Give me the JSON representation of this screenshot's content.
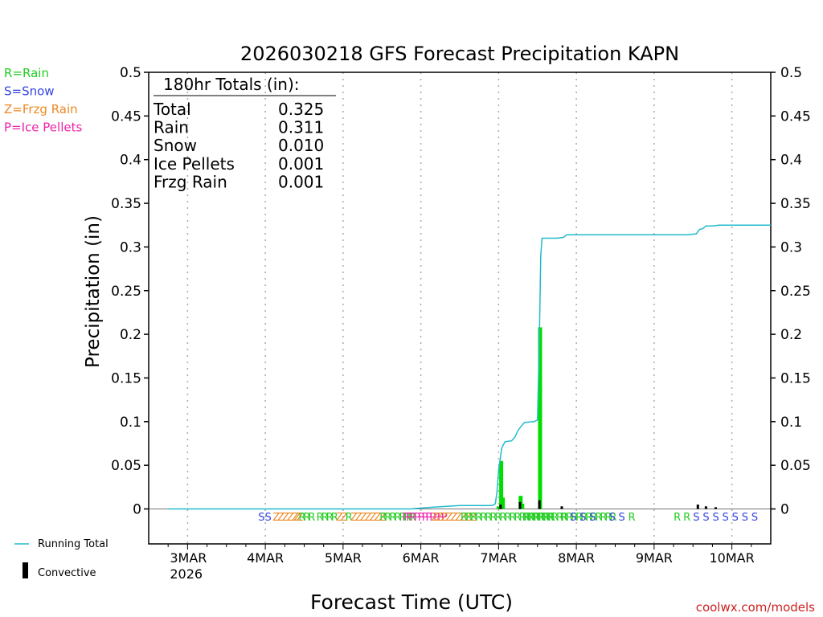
{
  "chart_data": {
    "type": "bar",
    "title": "2026030218 GFS Forecast Precipitation KAPN",
    "xlabel": "Forecast Time (UTC)",
    "ylabel": "Precipitation (in)",
    "ylim": [
      -0.04,
      0.5
    ],
    "xlim_hours": [
      -6,
      186
    ],
    "yticks": [
      0,
      0.05,
      0.1,
      0.15,
      0.2,
      0.25,
      0.3,
      0.35,
      0.4,
      0.45,
      0.5
    ],
    "ytick_labels": [
      "0",
      "0.05",
      "0.1",
      "0.15",
      "0.2",
      "0.25",
      "0.3",
      "0.35",
      "0.4",
      "0.45",
      "0.5"
    ],
    "xticks": [
      {
        "hour": 6,
        "label": "3MAR",
        "sub": "2026"
      },
      {
        "hour": 30,
        "label": "4MAR",
        "sub": ""
      },
      {
        "hour": 54,
        "label": "5MAR",
        "sub": ""
      },
      {
        "hour": 78,
        "label": "6MAR",
        "sub": ""
      },
      {
        "hour": 102,
        "label": "7MAR",
        "sub": ""
      },
      {
        "hour": 126,
        "label": "8MAR",
        "sub": ""
      },
      {
        "hour": 150,
        "label": "9MAR",
        "sub": ""
      },
      {
        "hour": 174,
        "label": "10MAR",
        "sub": ""
      }
    ],
    "type_legend": [
      {
        "text": "R=Rain",
        "color": "#22cc22"
      },
      {
        "text": "S=Snow",
        "color": "#3344dd"
      },
      {
        "text": "Z=Frzg Rain",
        "color": "#ee8822"
      },
      {
        "text": "P=Ice Pellets",
        "color": "#ee22aa"
      }
    ],
    "totals_box": {
      "heading": "180hr Totals (in):",
      "rows": [
        {
          "label": "Total",
          "value": "0.325"
        },
        {
          "label": "Rain",
          "value": "0.311"
        },
        {
          "label": "Snow",
          "value": "0.010"
        },
        {
          "label": "Ice Pellets",
          "value": "0.001"
        },
        {
          "label": "Frzg Rain",
          "value": "0.001"
        }
      ]
    },
    "series": [
      {
        "name": "Running Total",
        "color": "#22bbcc",
        "points": [
          [
            0,
            0
          ],
          [
            75,
            0
          ],
          [
            78,
            0.001
          ],
          [
            82,
            0.002
          ],
          [
            86,
            0.003
          ],
          [
            90,
            0.004
          ],
          [
            100,
            0.004
          ],
          [
            101,
            0.006
          ],
          [
            101.5,
            0.02
          ],
          [
            102,
            0.045
          ],
          [
            103,
            0.07
          ],
          [
            104,
            0.077
          ],
          [
            106,
            0.078
          ],
          [
            107,
            0.082
          ],
          [
            108,
            0.09
          ],
          [
            109,
            0.095
          ],
          [
            110,
            0.099
          ],
          [
            113,
            0.1
          ],
          [
            114,
            0.102
          ],
          [
            114.6,
            0.2
          ],
          [
            115,
            0.29
          ],
          [
            115.4,
            0.31
          ],
          [
            120,
            0.31
          ],
          [
            122,
            0.311
          ],
          [
            123,
            0.314
          ],
          [
            150,
            0.314
          ],
          [
            154,
            0.314
          ],
          [
            160,
            0.314
          ],
          [
            163,
            0.315
          ],
          [
            164,
            0.32
          ],
          [
            165,
            0.321
          ],
          [
            166,
            0.324
          ],
          [
            168,
            0.324
          ],
          [
            170,
            0.325
          ],
          [
            186,
            0.325
          ]
        ]
      },
      {
        "name": "Precipitation",
        "color": "#00dd00",
        "points": [
          [
            102,
            0.003
          ],
          [
            102.8,
            0.055
          ],
          [
            103.3,
            0.013
          ],
          [
            108.8,
            0.015
          ],
          [
            109.3,
            0.006
          ],
          [
            114.8,
            0.208
          ]
        ]
      },
      {
        "name": "Convective",
        "color": "#000000",
        "points": [
          [
            102.6,
            0.005
          ],
          [
            108.6,
            0.008
          ],
          [
            114.6,
            0.01
          ],
          [
            121.5,
            0.003
          ],
          [
            163.5,
            0.005
          ],
          [
            166,
            0.003
          ],
          [
            169,
            0.002
          ]
        ]
      }
    ],
    "ptype_markers": [
      {
        "hour": 27.8,
        "types": "SS"
      },
      {
        "hour": 33,
        "types": "ZZZZZZ"
      },
      {
        "hour": 39.5,
        "types": "ZRRR"
      },
      {
        "hour": 46.5,
        "types": "RRRRZZR"
      },
      {
        "hour": 57,
        "types": "ZZZZZZZ"
      },
      {
        "hour": 66,
        "types": "RRRRRRR"
      },
      {
        "hour": 73,
        "types": "PPPPPPPPPPP"
      },
      {
        "hour": 82,
        "types": "ZZZZZZZZZ"
      },
      {
        "hour": 91,
        "types": "RRRRRRRRRRRRRRRRRRR"
      },
      {
        "hour": 110,
        "types": "RRRRRRRRRRRRRRRRRRR"
      },
      {
        "hour": 121,
        "types": "R"
      },
      {
        "hour": 124,
        "types": "S"
      },
      {
        "hour": 127,
        "types": "S"
      },
      {
        "hour": 130,
        "types": "S"
      },
      {
        "hour": 136,
        "types": "S"
      },
      {
        "hour": 139,
        "types": "S"
      },
      {
        "hour": 142,
        "types": "R"
      },
      {
        "hour": 156,
        "types": "R"
      },
      {
        "hour": 159,
        "types": "R"
      },
      {
        "hour": 162,
        "types": "S"
      },
      {
        "hour": 165,
        "types": "S"
      },
      {
        "hour": 168,
        "types": "S"
      },
      {
        "hour": 171,
        "types": "S"
      },
      {
        "hour": 174,
        "types": "S"
      },
      {
        "hour": 177,
        "types": "S"
      },
      {
        "hour": 180,
        "types": "S"
      }
    ],
    "bottom_legend": [
      {
        "text": "Running Total",
        "kind": "line",
        "color": "#22bbcc"
      },
      {
        "text": "Convective",
        "kind": "bar",
        "color": "#000000"
      }
    ],
    "credit": "coolwx.com/models"
  },
  "colors": {
    "rain": "#22cc22",
    "snow": "#3344dd",
    "frzg_rain": "#ee8822",
    "ice_pellets": "#ee22aa",
    "credit": "#cc2222",
    "grid": "#aaaaaa"
  }
}
